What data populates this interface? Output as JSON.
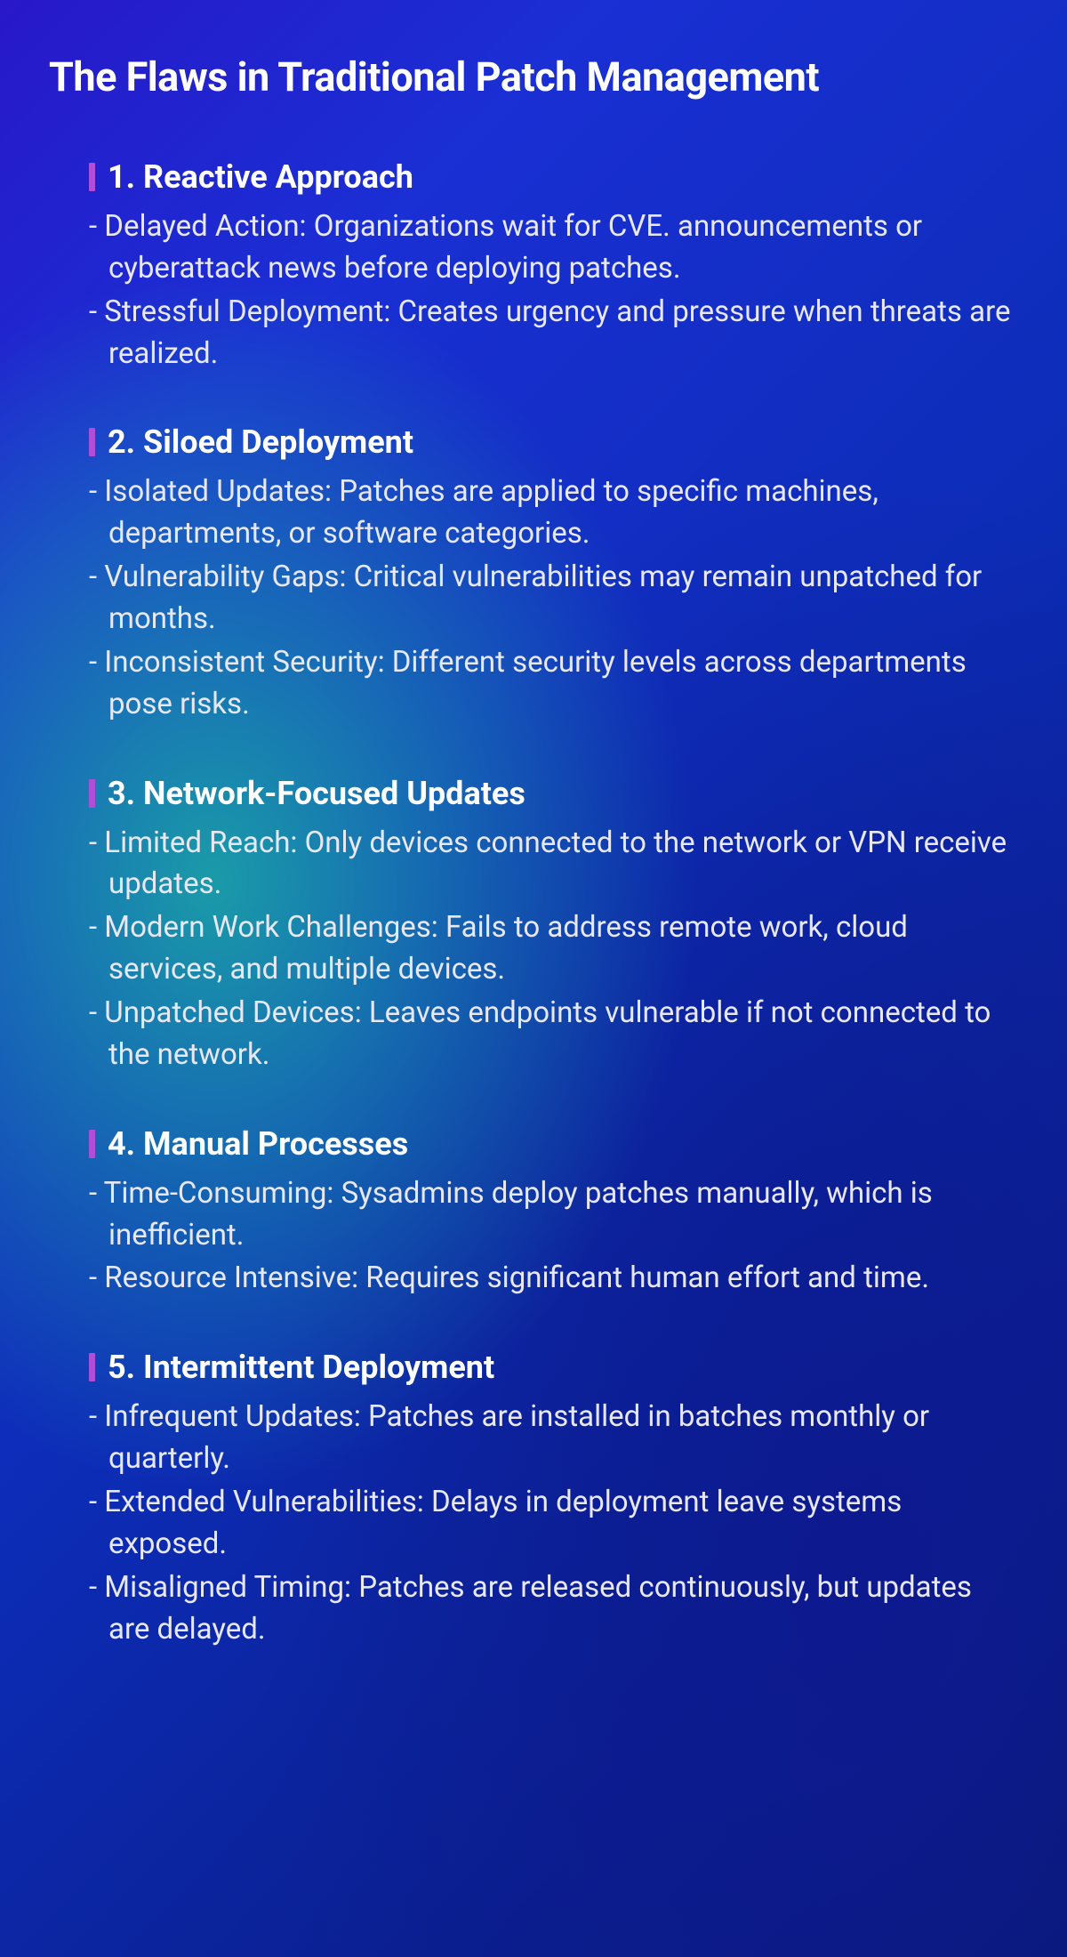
{
  "title": "The Flaws in Traditional Patch Management",
  "accent_color": "#b04dd9",
  "text_color": "#ffffff",
  "body_text_color": "#e8e8f5",
  "title_fontsize": 45,
  "section_title_fontsize": 36,
  "body_fontsize": 33,
  "sections": [
    {
      "number": "1",
      "title": "1. Reactive Approach",
      "bullets": [
        "- Delayed Action: Organizations wait for CVE. announcements or cyberattack news before deploying patches.",
        "- Stressful Deployment: Creates urgency and pressure when threats are realized."
      ]
    },
    {
      "number": "2",
      "title": "2. Siloed Deployment",
      "bullets": [
        "- Isolated Updates: Patches are applied to specific machines, departments, or software categories.",
        "- Vulnerability Gaps: Critical vulnerabilities may remain unpatched for months.",
        "- Inconsistent Security: Different security levels across departments pose risks."
      ]
    },
    {
      "number": "3",
      "title": "3. Network-Focused Updates",
      "bullets": [
        "- Limited Reach: Only devices connected to the network or VPN receive updates.",
        "- Modern Work Challenges: Fails to address remote work, cloud services, and multiple devices.",
        "- Unpatched Devices: Leaves endpoints vulnerable if not connected to the network."
      ]
    },
    {
      "number": "4",
      "title": "4. Manual Processes",
      "bullets": [
        "- Time-Consuming: Sysadmins deploy patches manually, which is inefficient.",
        "- Resource Intensive: Requires significant human effort and time."
      ]
    },
    {
      "number": "5",
      "title": "5. Intermittent Deployment",
      "bullets": [
        "- Infrequent Updates: Patches are installed in batches monthly or quarterly.",
        "- Extended Vulnerabilities: Delays in deployment leave systems exposed.",
        "- Misaligned Timing: Patches are released continuously, but updates are delayed."
      ]
    }
  ]
}
